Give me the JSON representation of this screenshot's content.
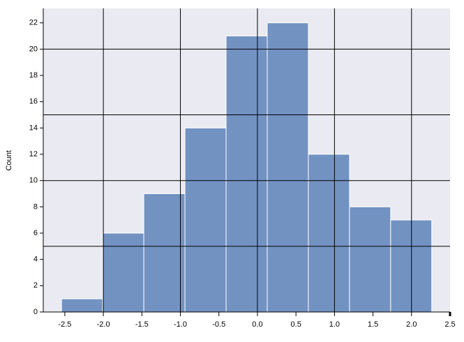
{
  "chart_data": {
    "type": "histogram",
    "ylabel": "Count",
    "bins": [
      -2.543,
      -2.009,
      -1.475,
      -0.941,
      -0.407,
      0.127,
      0.661,
      1.195,
      1.729,
      2.262
    ],
    "values": [
      1,
      6,
      9,
      14,
      21,
      22,
      12,
      8,
      7
    ],
    "color": "#7292c2",
    "xlim": [
      -2.78,
      2.5
    ],
    "ylim": [
      0,
      23.1
    ],
    "xticks": [
      -2.5,
      {
        "value": -2,
        "label": "-2.0"
      },
      -1.5,
      {
        "value": -1,
        "label": "-1.0"
      },
      -0.5,
      {
        "value": 0,
        "label": "0.0"
      },
      0.5,
      {
        "value": 1,
        "label": "1.0"
      },
      1.5,
      {
        "value": 2,
        "label": "2.0"
      },
      2.5
    ],
    "yticks": [
      0,
      2,
      4,
      6,
      8,
      10,
      12,
      14,
      16,
      18,
      20,
      22
    ],
    "xgrid": [
      -2,
      -1,
      0,
      1,
      2
    ],
    "ygrid": [
      5,
      10,
      15,
      20
    ],
    "grid_color": "#000000"
  }
}
